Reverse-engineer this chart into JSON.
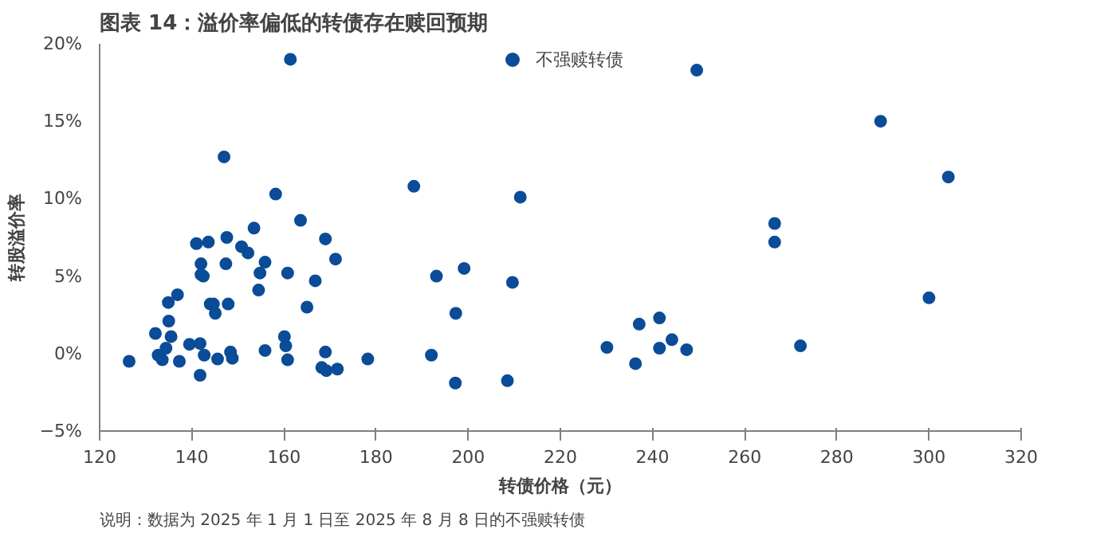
{
  "chart_data": {
    "type": "scatter",
    "title": "图表 14：溢价率偏低的转债存在赎回预期",
    "xlabel": "转债价格（元）",
    "ylabel": "转股溢价率",
    "annotations": [
      "说明：数据为 2025 年 1 月 1 日至 2025 年 8 月 8 日的不强赎转债"
    ],
    "xlim": [
      120,
      320
    ],
    "xticks": [
      120,
      140,
      160,
      180,
      200,
      220,
      240,
      260,
      280,
      300,
      320
    ],
    "ylim": [
      -5,
      20
    ],
    "yticks": [
      {
        "value": -5,
        "label": "−5%"
      },
      {
        "value": 0,
        "label": "0%"
      },
      {
        "value": 5,
        "label": "5%"
      },
      {
        "value": 10,
        "label": "10%"
      },
      {
        "value": 15,
        "label": "15%"
      },
      {
        "value": 20,
        "label": "20%"
      }
    ],
    "grid": false,
    "legend": "top",
    "marker": "circle",
    "series": [
      {
        "name": "不强赎转债",
        "color": "#0b4c98",
        "x": [
          126.4,
          132.1,
          134.9,
          136.9,
          135.0,
          135.5,
          132.7,
          133.6,
          134.4,
          137.3,
          139.5,
          141.8,
          141.8,
          142.7,
          141.0,
          143.6,
          142.0,
          142.0,
          142.5,
          144.0,
          144.7,
          145.1,
          145.6,
          147.0,
          147.6,
          147.4,
          147.9,
          148.4,
          148.8,
          150.8,
          152.2,
          153.5,
          154.5,
          154.8,
          155.9,
          155.9,
          158.2,
          161.4,
          160.8,
          160.1,
          160.4,
          160.8,
          163.6,
          165.0,
          166.8,
          169.0,
          171.2,
          169.0,
          168.2,
          169.2,
          171.6,
          178.2,
          188.2,
          193.1,
          199.1,
          197.3,
          192.0,
          197.2,
          211.3,
          209.6,
          208.5,
          230.1,
          236.3,
          237.1,
          241.5,
          241.5,
          244.2,
          247.4,
          249.6,
          266.5,
          266.5,
          272.1,
          289.5,
          304.2,
          300.0
        ],
        "values": [
          -0.5,
          1.3,
          3.3,
          3.8,
          2.1,
          1.1,
          -0.1,
          -0.4,
          0.35,
          -0.5,
          0.6,
          0.65,
          -1.4,
          -0.1,
          7.1,
          7.2,
          5.8,
          5.1,
          5.0,
          3.2,
          3.2,
          2.6,
          -0.35,
          12.7,
          7.5,
          5.8,
          3.2,
          0.1,
          -0.3,
          6.9,
          6.5,
          8.1,
          4.1,
          5.2,
          5.9,
          0.2,
          10.3,
          19.0,
          5.2,
          1.1,
          0.5,
          -0.4,
          8.6,
          3.0,
          4.7,
          7.4,
          6.1,
          0.1,
          -0.9,
          -1.1,
          -1.0,
          -0.35,
          10.8,
          5.0,
          5.5,
          2.6,
          -0.1,
          -1.9,
          10.1,
          4.6,
          -1.75,
          0.4,
          -0.65,
          1.9,
          2.3,
          0.35,
          0.9,
          0.25,
          18.3,
          8.4,
          7.2,
          0.5,
          15.0,
          11.4,
          3.6
        ]
      }
    ]
  }
}
